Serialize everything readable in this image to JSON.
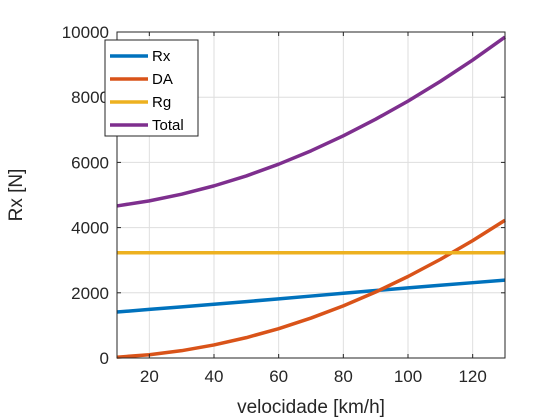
{
  "chart_data": {
    "type": "line",
    "title": "",
    "xlabel": "velocidade [km/h]",
    "ylabel": "Rx [N]",
    "xlim": [
      10,
      130
    ],
    "ylim": [
      0,
      10000
    ],
    "xticks": [
      20,
      40,
      60,
      80,
      100,
      120
    ],
    "yticks": [
      0,
      2000,
      4000,
      6000,
      8000,
      10000
    ],
    "grid": true,
    "legend_position": "top-left",
    "x": [
      10,
      20,
      30,
      40,
      50,
      60,
      70,
      80,
      90,
      100,
      110,
      120,
      130
    ],
    "series": [
      {
        "name": "Rx",
        "color": "#0072BD",
        "values": [
          1410,
          1490,
          1570,
          1650,
          1730,
          1815,
          1900,
          1985,
          2070,
          2150,
          2230,
          2310,
          2390
        ]
      },
      {
        "name": "DA",
        "color": "#D95319",
        "values": [
          25,
          100,
          225,
          400,
          625,
          900,
          1225,
          1600,
          2025,
          2500,
          3025,
          3600,
          4225
        ]
      },
      {
        "name": "Rg",
        "color": "#EDB120",
        "values": [
          3230,
          3230,
          3230,
          3230,
          3230,
          3230,
          3230,
          3230,
          3230,
          3230,
          3230,
          3230,
          3230
        ]
      },
      {
        "name": "Total",
        "color": "#7E2F8E",
        "values": [
          4665,
          4820,
          5025,
          5280,
          5585,
          5945,
          6355,
          6815,
          7325,
          7880,
          8485,
          9140,
          9845
        ]
      }
    ]
  }
}
